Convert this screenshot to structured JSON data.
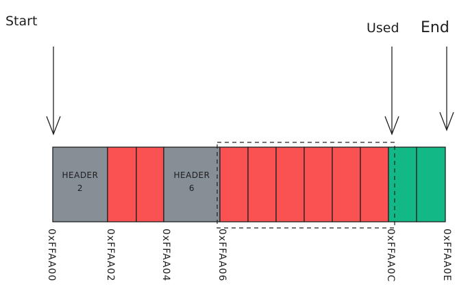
{
  "labels": {
    "start": "Start",
    "used": "Used",
    "end": "End"
  },
  "colors": {
    "header": "#868e96",
    "used": "#fa5252",
    "free": "#12b886",
    "stroke": "#1e1e1e"
  },
  "blocks": [
    {
      "type": "header",
      "line1": "HEADER",
      "line2": "2"
    },
    {
      "type": "used"
    },
    {
      "type": "used"
    },
    {
      "type": "header",
      "line1": "HEADER",
      "line2": "6"
    },
    {
      "type": "used"
    },
    {
      "type": "used"
    },
    {
      "type": "used"
    },
    {
      "type": "used"
    },
    {
      "type": "used"
    },
    {
      "type": "used"
    },
    {
      "type": "free"
    },
    {
      "type": "free"
    }
  ],
  "addresses": [
    "0xFFAA00",
    "0xFFAA02",
    "0xFFAA04",
    "0xFFAA06",
    "0xFFAA0C",
    "0xFFAA0E"
  ]
}
